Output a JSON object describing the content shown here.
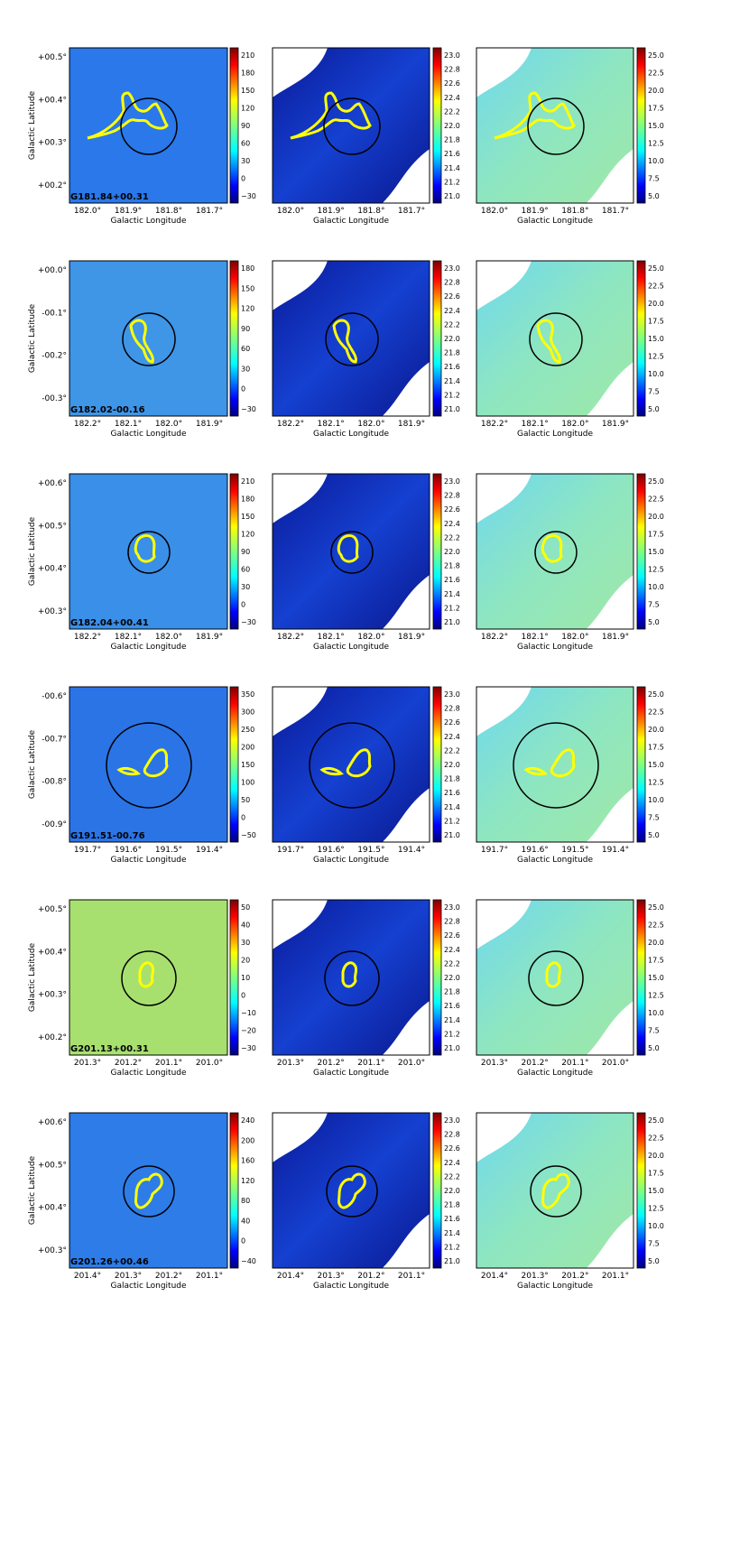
{
  "figure": {
    "colormaps": {
      "jet": [
        "#00007f",
        "#0000ff",
        "#007fff",
        "#00ffff",
        "#7fff7f",
        "#ffff00",
        "#ff7f00",
        "#ff0000",
        "#7f0000"
      ],
      "contour_color": "#ffff00",
      "circle_color": "#000000"
    },
    "axis_titles": {
      "x": "Galactic Longitude",
      "y": "Galactic Latitude"
    },
    "column_colorbars": {
      "column_density": [
        "21.0",
        "21.2",
        "21.4",
        "21.6",
        "21.8",
        "22.0",
        "22.2",
        "22.4",
        "22.6",
        "22.8",
        "23.0"
      ],
      "temperature": [
        "5.0",
        "7.5",
        "10.0",
        "12.5",
        "15.0",
        "17.5",
        "20.0",
        "22.5",
        "25.0"
      ]
    },
    "rows": [
      {
        "name": "G181.84+00.31",
        "lat_ticks": [
          "+00.5°",
          "+00.4°",
          "+00.3°",
          "+00.2°"
        ],
        "lon_ticks": [
          "182.0°",
          "181.9°",
          "181.8°",
          "181.7°"
        ],
        "col1_bar": [
          "210",
          "180",
          "150",
          "120",
          "90",
          "60",
          "30",
          "0",
          "−30"
        ],
        "col1_bg": "#2a78ea"
      },
      {
        "name": "G182.02-00.16",
        "lat_ticks": [
          "+00.0°",
          "-00.1°",
          "-00.2°",
          "-00.3°"
        ],
        "lon_ticks": [
          "182.2°",
          "182.1°",
          "182.0°",
          "181.9°"
        ],
        "col1_bar": [
          "180",
          "150",
          "120",
          "90",
          "60",
          "30",
          "0",
          "−30"
        ],
        "col1_bg": "#3f95e6"
      },
      {
        "name": "G182.04+00.41",
        "lat_ticks": [
          "+00.6°",
          "+00.5°",
          "+00.4°",
          "+00.3°"
        ],
        "lon_ticks": [
          "182.2°",
          "182.1°",
          "182.0°",
          "181.9°"
        ],
        "col1_bar": [
          "210",
          "180",
          "150",
          "120",
          "90",
          "60",
          "30",
          "0",
          "−30"
        ],
        "col1_bg": "#3a8fe8"
      },
      {
        "name": "G191.51-00.76",
        "lat_ticks": [
          "-00.6°",
          "-00.7°",
          "-00.8°",
          "-00.9°"
        ],
        "lon_ticks": [
          "191.7°",
          "191.6°",
          "191.5°",
          "191.4°"
        ],
        "col1_bar": [
          "350",
          "300",
          "250",
          "200",
          "150",
          "100",
          "50",
          "0",
          "−50"
        ],
        "col1_bg": "#2b74e6"
      },
      {
        "name": "G201.13+00.31",
        "lat_ticks": [
          "+00.5°",
          "+00.4°",
          "+00.3°",
          "+00.2°"
        ],
        "lon_ticks": [
          "201.3°",
          "201.2°",
          "201.1°",
          "201.0°"
        ],
        "col1_bar": [
          "50",
          "40",
          "30",
          "20",
          "10",
          "0",
          "−10",
          "−20",
          "−30"
        ],
        "col1_bg": "#a8e070"
      },
      {
        "name": "G201.26+00.46",
        "lat_ticks": [
          "+00.6°",
          "+00.5°",
          "+00.4°",
          "+00.3°"
        ],
        "lon_ticks": [
          "201.4°",
          "201.3°",
          "201.2°",
          "201.1°"
        ],
        "col1_bar": [
          "240",
          "200",
          "160",
          "120",
          "80",
          "40",
          "0",
          "−40"
        ],
        "col1_bg": "#2d7ce8"
      }
    ]
  }
}
